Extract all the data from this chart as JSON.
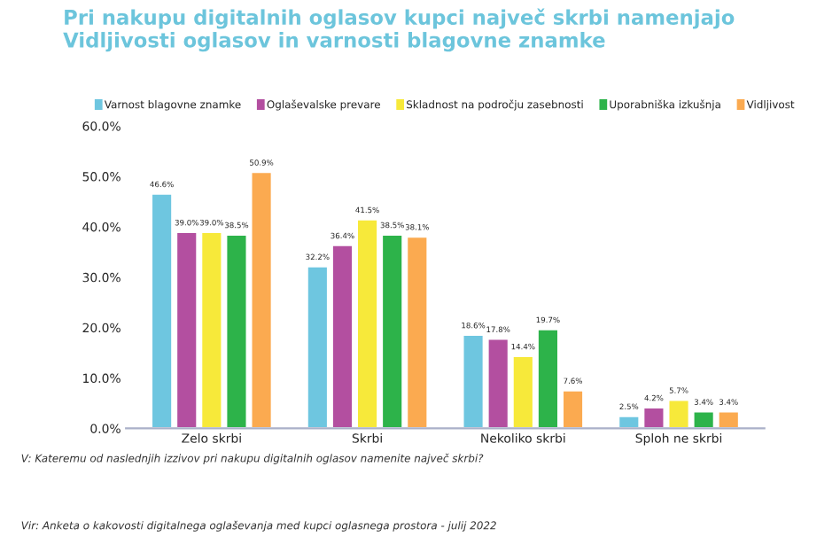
{
  "chart_data": {
    "type": "bar",
    "title": "Pri nakupu digitalnih oglasov kupci največ skrbi namenjajo\nVidljivosti oglasov in varnosti blagovne znamke",
    "categories": [
      "Zelo skrbi",
      "Skrbi",
      "Nekoliko skrbi",
      "Sploh ne skrbi"
    ],
    "series": [
      {
        "name": "Varnost blagovne znamke",
        "color": "#6ec6e0",
        "values": [
          46.6,
          32.2,
          18.6,
          2.5
        ],
        "value_labels": [
          "46.6%",
          "32.2%",
          "18.6%",
          "2.5%"
        ]
      },
      {
        "name": "Oglaševalske prevare",
        "color": "#b34fa0",
        "values": [
          39.0,
          36.4,
          17.8,
          4.2
        ],
        "value_labels": [
          "39.0%",
          "36.4%",
          "17.8%",
          "4.2%"
        ]
      },
      {
        "name": "Skladnost na področju zasebnosti",
        "color": "#f7e93a",
        "values": [
          39.0,
          41.5,
          14.4,
          5.7
        ],
        "value_labels": [
          "39.0%",
          "41.5%",
          "14.4%",
          "5.7%"
        ]
      },
      {
        "name": "Uporabniška izkušnja",
        "color": "#2db34a",
        "values": [
          38.5,
          38.5,
          19.7,
          3.4
        ],
        "value_labels": [
          "38.5%",
          "38.5%",
          "19.7%",
          "3.4%"
        ]
      },
      {
        "name": "Vidljivost",
        "color": "#fbaa50",
        "values": [
          50.9,
          38.1,
          7.6,
          3.4
        ],
        "value_labels": [
          "50.9%",
          "38.1%",
          "7.6%",
          "3.4%"
        ]
      }
    ],
    "ylim": [
      0,
      60
    ],
    "yticks": [
      {
        "value": 0,
        "label": "0.0%"
      },
      {
        "value": 10,
        "label": "10.0%"
      },
      {
        "value": 20,
        "label": "20.0%"
      },
      {
        "value": 30,
        "label": "30.0%"
      },
      {
        "value": 40,
        "label": "40.0%"
      },
      {
        "value": 50,
        "label": "50.0%"
      },
      {
        "value": 60,
        "label": "60.0%"
      }
    ],
    "grid": false,
    "legend": "top",
    "annotations": [
      "V: Kateremu od naslednjih izzivov pri nakupu digitalnih oglasov namenite največ skrbi?",
      "Vir: Anketa o kakovosti digitalnega oglaševanja med kupci oglasnega prostora - julij 2022"
    ]
  }
}
